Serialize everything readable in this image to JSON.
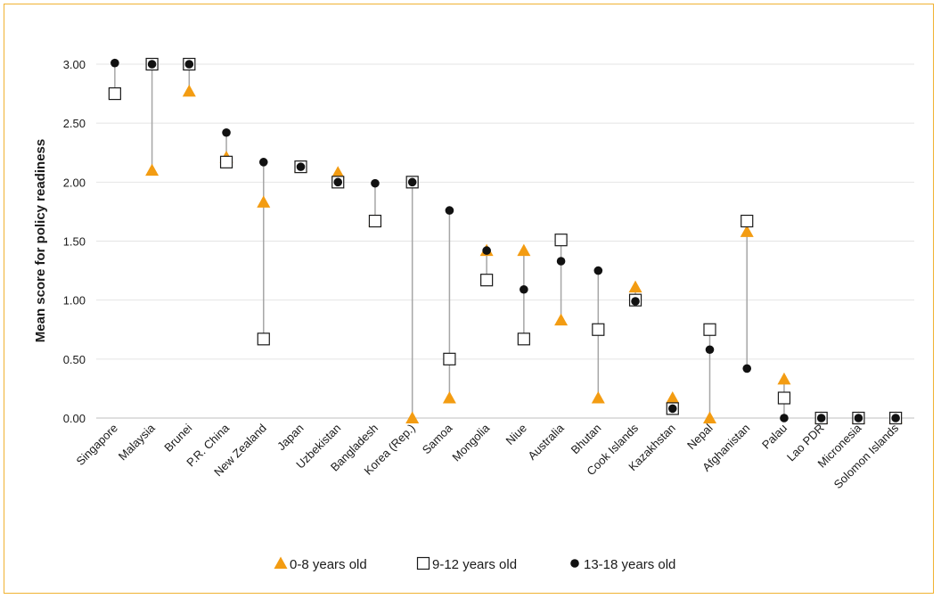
{
  "chart_data": {
    "type": "scatter",
    "title": "",
    "xlabel": "",
    "ylabel": "Mean score for policy readiness",
    "ylim": [
      0,
      3
    ],
    "yticks": [
      "0.00",
      "0.50",
      "1.00",
      "1.50",
      "2.00",
      "2.50",
      "3.00"
    ],
    "grid": true,
    "legend_position": "bottom",
    "categories": [
      "Singapore",
      "Malaysia",
      "Brunei",
      "P.R. China",
      "New Zealand",
      "Japan",
      "Uzbekistan",
      "Bangladesh",
      "Korea (Rep.)",
      "Samoa",
      "Mongolia",
      "Niue",
      "Australia",
      "Bhutan",
      "Cook Islands",
      "Kazakhstan",
      "Nepal",
      "Afghanistan",
      "Palau",
      "Lao PDR",
      "Micronesia",
      "Solomon Islands"
    ],
    "series": [
      {
        "name": "0-8 years old",
        "marker": "triangle",
        "color": "#f39c12",
        "values": [
          null,
          2.1,
          2.77,
          2.21,
          1.83,
          2.13,
          2.08,
          1.67,
          0.0,
          0.17,
          1.42,
          1.42,
          0.83,
          0.17,
          1.11,
          0.17,
          0.0,
          1.58,
          0.33,
          0.0,
          0.0,
          0.0
        ]
      },
      {
        "name": "9-12 years old",
        "marker": "square",
        "color": "#ffffff",
        "values": [
          2.75,
          3.0,
          3.0,
          2.17,
          0.67,
          2.13,
          2.0,
          1.67,
          2.0,
          0.5,
          1.17,
          0.67,
          1.51,
          0.75,
          1.0,
          0.08,
          0.75,
          1.67,
          0.17,
          0.0,
          0.0,
          0.0
        ]
      },
      {
        "name": "13-18 years old",
        "marker": "circle",
        "color": "#111111",
        "values": [
          3.01,
          3.0,
          3.0,
          2.42,
          2.17,
          2.13,
          2.0,
          1.99,
          2.0,
          1.76,
          1.42,
          1.09,
          1.33,
          1.25,
          0.99,
          0.08,
          0.58,
          0.42,
          0.0,
          0.0,
          0.0,
          0.0
        ]
      }
    ]
  }
}
